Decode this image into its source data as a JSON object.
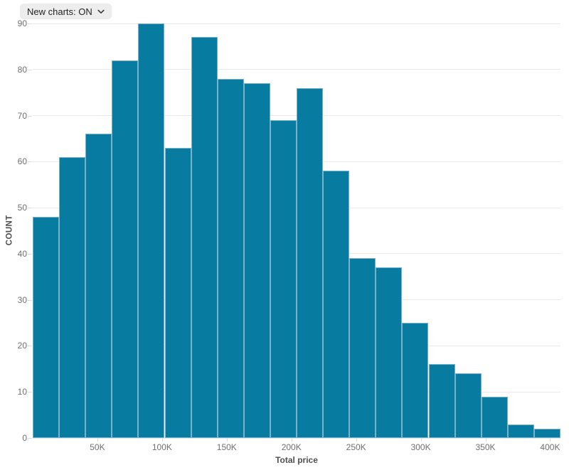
{
  "controls": {
    "new_charts_label": "New charts: ON"
  },
  "chart_data": {
    "type": "bar",
    "subtype": "histogram",
    "title": "",
    "xlabel": "Total price",
    "ylabel": "COUNT",
    "bin_count": 20,
    "x_domain": [
      0,
      408000
    ],
    "values": [
      48,
      61,
      66,
      82,
      90,
      63,
      87,
      78,
      77,
      69,
      76,
      58,
      39,
      37,
      25,
      16,
      14,
      9,
      3,
      2
    ],
    "total_count": 1000,
    "x_ticks": [
      {
        "value": 50000,
        "label": "50K"
      },
      {
        "value": 100000,
        "label": "100K"
      },
      {
        "value": 150000,
        "label": "150K"
      },
      {
        "value": 200000,
        "label": "200K"
      },
      {
        "value": 250000,
        "label": "250K"
      },
      {
        "value": 300000,
        "label": "300K"
      },
      {
        "value": 350000,
        "label": "350K"
      },
      {
        "value": 400000,
        "label": "400K"
      }
    ],
    "y_ticks": [
      0,
      10,
      20,
      30,
      40,
      50,
      60,
      70,
      80,
      90
    ],
    "ylim": [
      0,
      90
    ],
    "grid": true,
    "legend": "none",
    "colors": {
      "bar_fill": "#077ca0",
      "bar_stroke": "#79b3cb",
      "gridline": "#eaeaea",
      "tick_mark": "#dcdcdc",
      "tick_text": "#6f6f6f",
      "axis_title_text": "#4f4f4f"
    }
  }
}
